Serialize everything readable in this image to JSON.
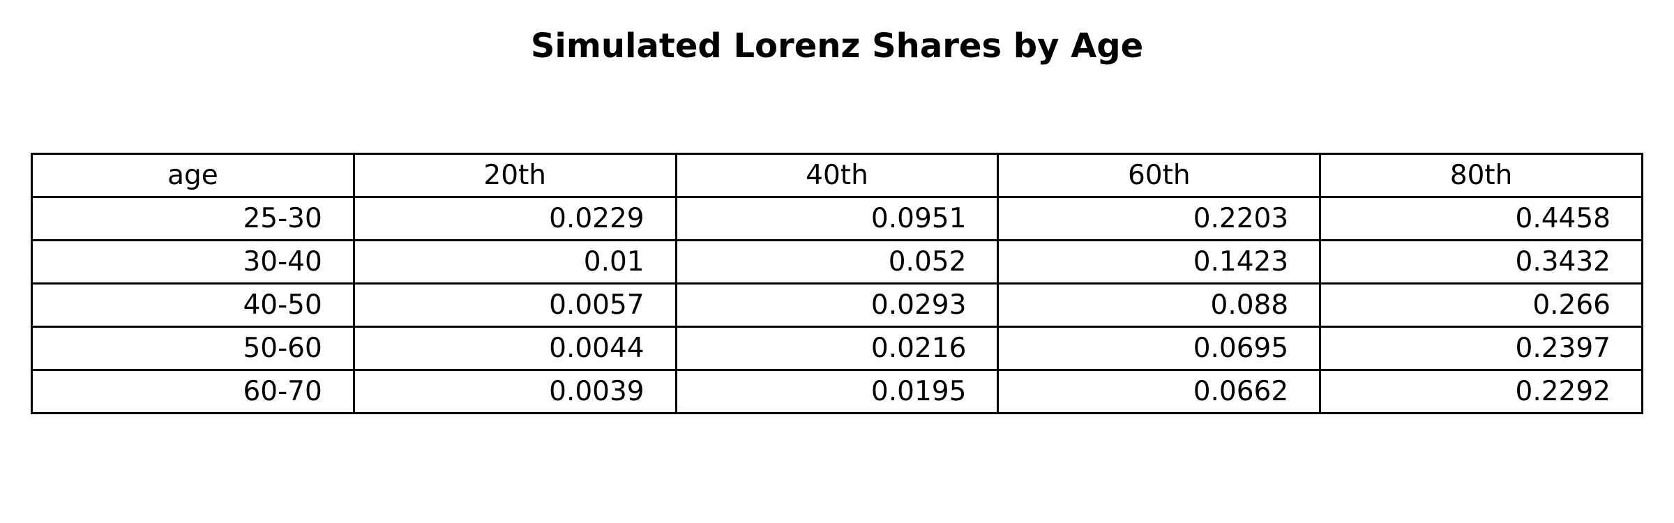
{
  "chart_data": {
    "type": "table",
    "title": "Simulated Lorenz Shares by Age",
    "columns": [
      "age",
      "20th",
      "40th",
      "60th",
      "80th"
    ],
    "rows": [
      [
        "25-30",
        "0.0229",
        "0.0951",
        "0.2203",
        "0.4458"
      ],
      [
        "30-40",
        "0.01",
        "0.052",
        "0.1423",
        "0.3432"
      ],
      [
        "40-50",
        "0.0057",
        "0.0293",
        "0.088",
        "0.266"
      ],
      [
        "50-60",
        "0.0044",
        "0.0216",
        "0.0695",
        "0.2397"
      ],
      [
        "60-70",
        "0.0039",
        "0.0195",
        "0.0662",
        "0.2292"
      ]
    ]
  }
}
